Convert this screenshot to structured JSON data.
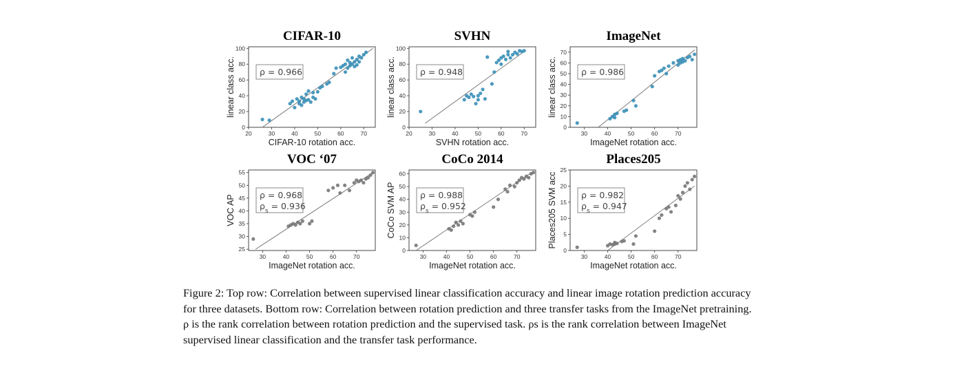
{
  "caption": {
    "lines": [
      "Figure 2: Top row: Correlation between supervised linear classification accuracy and linear image rotation prediction accuracy",
      "for three datasets. Bottom row: Correlation between rotation prediction and three transfer tasks from the ImageNet pretraining.",
      "ρ is the rank correlation between rotation prediction and the supervised task. ρs is the rank correlation between ImageNet",
      "supervised linear classification and the transfer task performance."
    ]
  },
  "chart_data": [
    {
      "type": "scatter",
      "title": "CIFAR-10",
      "xlabel": "CIFAR-10 rotation acc.",
      "ylabel": "linear class acc.",
      "xlim": [
        20,
        75
      ],
      "ylim": [
        0,
        102
      ],
      "xticks": [
        20,
        30,
        40,
        50,
        60,
        70
      ],
      "yticks": [
        0,
        20,
        40,
        60,
        80,
        100
      ],
      "grid": false,
      "color": "#3a8fb7",
      "annotations": [
        "ρ = 0.966"
      ],
      "fit_line": [
        [
          26,
          0
        ],
        [
          74,
          100
        ]
      ],
      "x": [
        26,
        29,
        38,
        39,
        40,
        41,
        42,
        42,
        43,
        43,
        44,
        44,
        45,
        45,
        46,
        46,
        47,
        48,
        48,
        49,
        50,
        51,
        52,
        54,
        55,
        57,
        58,
        60,
        61,
        62,
        62,
        63,
        63,
        64,
        64,
        65,
        65,
        66,
        66,
        67,
        67,
        68,
        68,
        69,
        70,
        71
      ],
      "y": [
        10,
        9,
        30,
        33,
        25,
        36,
        30,
        33,
        28,
        38,
        32,
        36,
        34,
        42,
        35,
        46,
        32,
        44,
        38,
        36,
        45,
        50,
        52,
        55,
        57,
        68,
        75,
        76,
        78,
        70,
        80,
        75,
        85,
        78,
        82,
        80,
        88,
        77,
        83,
        79,
        86,
        83,
        90,
        88,
        92,
        95
      ]
    },
    {
      "type": "scatter",
      "title": "SVHN",
      "xlabel": "SVHN rotation acc.",
      "ylabel": "linear class acc.",
      "xlim": [
        20,
        75
      ],
      "ylim": [
        0,
        102
      ],
      "xticks": [
        20,
        30,
        40,
        50,
        60,
        70
      ],
      "yticks": [
        0,
        20,
        40,
        60,
        80,
        100
      ],
      "grid": false,
      "color": "#3a8fb7",
      "annotations": [
        "ρ = 0.948"
      ],
      "fit_line": [
        [
          27,
          5
        ],
        [
          70,
          96
        ]
      ],
      "x": [
        25,
        44,
        45,
        46,
        47,
        48,
        49,
        50,
        50,
        51,
        52,
        53,
        54,
        56,
        57,
        58,
        59,
        60,
        60,
        61,
        62,
        63,
        63,
        64,
        65,
        66,
        67,
        68,
        69,
        70
      ],
      "y": [
        20,
        35,
        40,
        38,
        42,
        39,
        30,
        40,
        35,
        43,
        48,
        36,
        89,
        55,
        70,
        82,
        85,
        88,
        80,
        90,
        86,
        92,
        96,
        88,
        92,
        95,
        93,
        97,
        96,
        97
      ]
    },
    {
      "type": "scatter",
      "title": "ImageNet",
      "xlabel": "ImageNet rotation acc.",
      "ylabel": "linear class acc.",
      "xlim": [
        24,
        78
      ],
      "ylim": [
        0,
        75
      ],
      "xticks": [
        30,
        40,
        50,
        60,
        70
      ],
      "yticks": [
        0,
        10,
        20,
        30,
        40,
        50,
        60,
        70
      ],
      "grid": false,
      "color": "#3a8fb7",
      "annotations": [
        "ρ = 0.986"
      ],
      "fit_line": [
        [
          36,
          0
        ],
        [
          77,
          72
        ]
      ],
      "x": [
        27,
        41,
        42,
        43,
        43,
        44,
        47,
        48,
        51,
        52,
        59,
        60,
        62,
        63,
        64,
        65,
        66,
        68,
        70,
        70,
        71,
        71,
        72,
        72,
        73,
        74,
        75,
        76,
        77
      ],
      "y": [
        4,
        8,
        10,
        9,
        12,
        13,
        15,
        16,
        25,
        20,
        38,
        48,
        52,
        53,
        55,
        50,
        57,
        60,
        62,
        58,
        63,
        60,
        64,
        61,
        62,
        65,
        66,
        63,
        68
      ]
    },
    {
      "type": "scatter",
      "title": "VOC ‘07",
      "xlabel": "ImageNet rotation acc.",
      "ylabel": "VOC AP",
      "xlim": [
        24,
        78
      ],
      "ylim": [
        24.5,
        56
      ],
      "xticks": [
        30,
        40,
        50,
        60,
        70
      ],
      "yticks": [
        25,
        30,
        35,
        40,
        45,
        50,
        55
      ],
      "grid": false,
      "color": "#777777",
      "annotations": [
        "ρ = 0.968",
        "ρs = 0.936"
      ],
      "fit_line": [
        [
          27,
          25
        ],
        [
          77,
          55
        ]
      ],
      "x": [
        26,
        41,
        42,
        43,
        44,
        45,
        46,
        47,
        50,
        51,
        58,
        60,
        62,
        63,
        65,
        67,
        69,
        70,
        71,
        72,
        73,
        74,
        75,
        76,
        77
      ],
      "y": [
        29,
        34,
        34.5,
        35,
        34.5,
        35.5,
        35,
        36,
        35,
        36,
        48,
        49,
        50,
        47,
        50,
        48,
        51,
        52,
        51.5,
        52,
        51,
        52.5,
        53,
        54,
        55
      ]
    },
    {
      "type": "scatter",
      "title": "CoCo 2014",
      "xlabel": "ImageNet rotation acc.",
      "ylabel": "CoCo SVM AP",
      "xlim": [
        24,
        78
      ],
      "ylim": [
        0,
        63
      ],
      "xticks": [
        30,
        40,
        50,
        60,
        70
      ],
      "yticks": [
        0,
        10,
        20,
        30,
        40,
        50,
        60
      ],
      "grid": false,
      "color": "#777777",
      "annotations": [
        "ρ = 0.988",
        "ρs = 0.952"
      ],
      "fit_line": [
        [
          27,
          0
        ],
        [
          77,
          62
        ]
      ],
      "x": [
        27,
        41,
        42,
        43,
        44,
        45,
        46,
        47,
        50,
        51,
        52,
        60,
        62,
        65,
        66,
        67,
        69,
        70,
        71,
        72,
        73,
        74,
        75,
        76,
        77
      ],
      "y": [
        4,
        17,
        16,
        19,
        22,
        20,
        23,
        21,
        28,
        27,
        30,
        34,
        40,
        48,
        46,
        51,
        50,
        53,
        55,
        57,
        56,
        58,
        57,
        60,
        61
      ]
    },
    {
      "type": "scatter",
      "title": "Places205",
      "xlabel": "ImageNet rotation acc.",
      "ylabel": "Places205 SVM acc",
      "xlim": [
        24,
        78
      ],
      "ylim": [
        0,
        25
      ],
      "xticks": [
        30,
        40,
        50,
        60,
        70
      ],
      "yticks": [
        0,
        5,
        10,
        15,
        20,
        25
      ],
      "grid": false,
      "color": "#777777",
      "annotations": [
        "ρ = 0.982",
        "ρs = 0.947"
      ],
      "fit_line": [
        [
          40,
          0
        ],
        [
          77,
          20
        ]
      ],
      "x": [
        27,
        40,
        41,
        42,
        43,
        43,
        44,
        46,
        47,
        51,
        52,
        60,
        62,
        63,
        65,
        66,
        67,
        69,
        70,
        71,
        72,
        73,
        74,
        75,
        76,
        77
      ],
      "y": [
        1,
        1.5,
        2,
        1.8,
        2.5,
        2,
        2.2,
        2.8,
        3,
        2,
        4.5,
        6,
        10,
        11,
        13,
        13.5,
        12,
        14,
        17,
        16,
        18,
        20,
        21,
        19,
        22,
        23
      ]
    }
  ]
}
